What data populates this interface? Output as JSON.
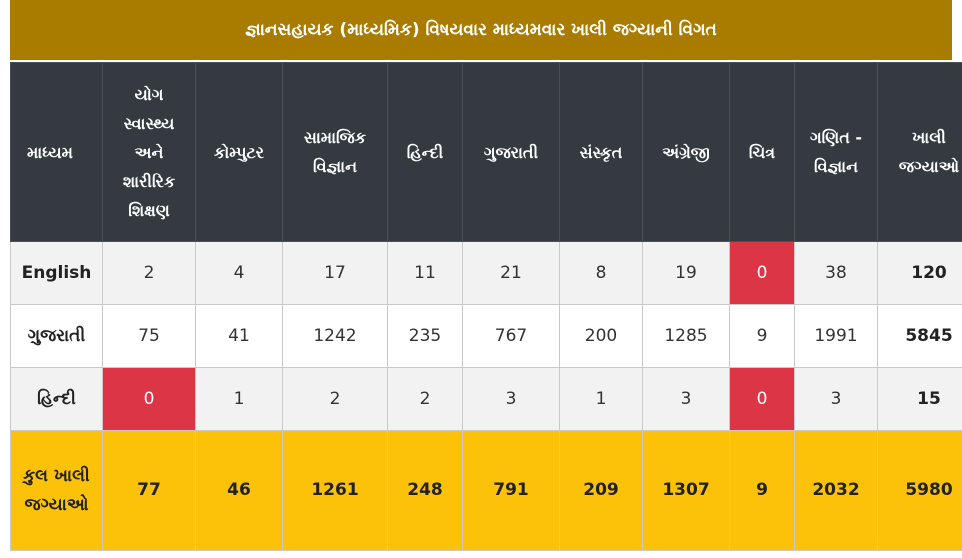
{
  "title": "જ્ઞાનસહાયક (માધ્યમિક) વિષયવાર માધ્યમવાર ખાલી જગ્યાની વિગત",
  "headers": [
    "માધ્યમ",
    "યોગ સ્વાસ્થ્ય અને શારીરિક શિક્ષણ",
    "કોમ્પુટર",
    "સામાજિક વિજ્ઞાન",
    "હિન્દી",
    "ગુજરાતી",
    "સંસ્કૃત",
    "અંગ્રેજી",
    "ચિત્ર",
    "ગણિત - વિજ્ઞાન",
    "ખાલી જગ્યાઓ"
  ],
  "rows": [
    {
      "label": "English",
      "values": [
        "2",
        "4",
        "17",
        "11",
        "21",
        "8",
        "19",
        "0",
        "38"
      ],
      "total": "120",
      "highlight": [
        7
      ]
    },
    {
      "label": "ગુજરાતી",
      "values": [
        "75",
        "41",
        "1242",
        "235",
        "767",
        "200",
        "1285",
        "9",
        "1991"
      ],
      "total": "5845",
      "highlight": []
    },
    {
      "label": "હિન્દી",
      "values": [
        "0",
        "1",
        "2",
        "2",
        "3",
        "1",
        "3",
        "0",
        "3"
      ],
      "total": "15",
      "highlight": [
        0,
        7
      ]
    }
  ],
  "total_row": {
    "label": "કુલ ખાલી જગ્યાઓ",
    "values": [
      "77",
      "46",
      "1261",
      "248",
      "791",
      "209",
      "1307",
      "9",
      "2032"
    ],
    "total": "5980"
  },
  "colors": {
    "title_bg": "#a97c00",
    "header_bg": "#343a40",
    "zero_highlight": "#dc3545",
    "total_row_bg": "#fcc209"
  }
}
